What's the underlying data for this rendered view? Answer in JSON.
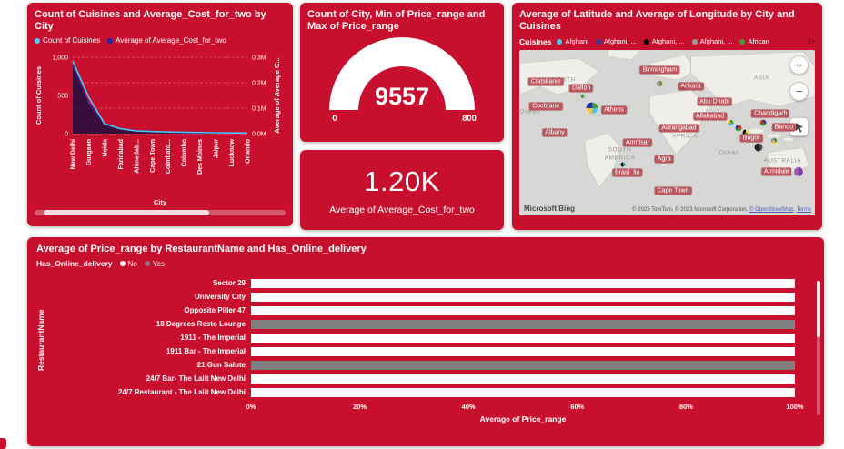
{
  "theme": {
    "card_red": "#C8102E",
    "series_no": "#FFFFFF",
    "series_yes": "#7F7F7F",
    "light_blue": "#53C6F5",
    "dark_blue": "#1B2AA6",
    "area_fill": "rgba(10,10,60,0.75)"
  },
  "chart_data": [
    {
      "id": "combo",
      "type": "line",
      "title": "Count of Cuisines and Average_Cost_for_two by City",
      "categories": [
        "New Delhi",
        "Gurgaon",
        "Noida",
        "Faridabad",
        "Ahmedab...",
        "Cape Town",
        "Coimbato...",
        "Colombo",
        "Des Moines",
        "Jaipur",
        "Lucknow",
        "Orlando"
      ],
      "series": [
        {
          "name": "Count of Cuisines",
          "axis": "left",
          "color": "#53C6F5",
          "values": [
            950,
            480,
            130,
            65,
            35,
            27,
            22,
            18,
            15,
            12,
            10,
            8
          ]
        },
        {
          "name": "Average of Average_Cost_for_two",
          "axis": "right",
          "color": "#1B2AA6",
          "values": [
            0.27,
            0.12,
            0.04,
            0.02,
            0.012,
            0.009,
            0.007,
            0.006,
            0.005,
            0.004,
            0.0035,
            0.003
          ]
        }
      ],
      "left_axis": {
        "title": "Count of Cuisines",
        "ticks": [
          "1,000",
          "500",
          "0"
        ],
        "max": 1000
      },
      "right_axis": {
        "title": "Average of Average C...",
        "ticks": [
          "0.3M",
          "0.2M",
          "0.1M",
          "0.0M"
        ],
        "max": 0.3
      },
      "xlabel": "City",
      "grid": true,
      "legend_position": "top"
    },
    {
      "id": "gauge",
      "type": "gauge",
      "title": "Count of City, Min of Price_range and Max of Price_range",
      "value": "9557",
      "min_label": "0",
      "max_label": "800"
    },
    {
      "id": "kpi-card",
      "type": "card",
      "value": "1.20K",
      "label": "Average of Average_Cost_for_two"
    },
    {
      "id": "map",
      "type": "map",
      "title": "Average of Latitude and Average of Longitude by City and Cuisines",
      "legend_title": "Cuisines",
      "legend_next": "▷",
      "legend": [
        {
          "label": "Afghani",
          "color": "#4FC8F0"
        },
        {
          "label": "Afghani, ...",
          "color": "#2C3C9E"
        },
        {
          "label": "Afghani, ...",
          "color": "#000000"
        },
        {
          "label": "Afghani, ...",
          "color": "#9B9B9B"
        },
        {
          "label": "African",
          "color": "#3F9C35"
        }
      ],
      "controls": {
        "zoom_in": "+",
        "zoom_out": "−"
      },
      "cities": [
        {
          "name": "Birmingham",
          "x": 47.5,
          "y": 12
        },
        {
          "name": "Clatskanie",
          "x": 9,
          "y": 19
        },
        {
          "name": "Dalton",
          "x": 21,
          "y": 23
        },
        {
          "name": "Ankara",
          "x": 58,
          "y": 22
        },
        {
          "name": "Abu Dhabi",
          "x": 66,
          "y": 31
        },
        {
          "name": "Cochrane",
          "x": 9,
          "y": 34
        },
        {
          "name": "Athens",
          "x": 32,
          "y": 36
        },
        {
          "name": "Allahabad",
          "x": 64.5,
          "y": 40
        },
        {
          "name": "Chandigarh",
          "x": 85,
          "y": 38
        },
        {
          "name": "Aurangabad",
          "x": 54,
          "y": 47
        },
        {
          "name": "Bandu",
          "x": 89.5,
          "y": 46.5
        },
        {
          "name": "Albany",
          "x": 12,
          "y": 50
        },
        {
          "name": "Amritsar",
          "x": 40,
          "y": 56
        },
        {
          "name": "Bogor",
          "x": 78.5,
          "y": 53
        },
        {
          "name": "Agra",
          "x": 49,
          "y": 66
        },
        {
          "name": "Brasí_lia",
          "x": 36.5,
          "y": 74
        },
        {
          "name": "Armidale",
          "x": 87,
          "y": 73.5
        },
        {
          "name": "Cape Town",
          "x": 52,
          "y": 85
        }
      ],
      "regions": [
        {
          "text": "NORTH",
          "x": 15,
          "y": 18
        },
        {
          "text": "ASIA",
          "x": 82,
          "y": 17
        },
        {
          "text": "AFRICA",
          "x": 56,
          "y": 52
        },
        {
          "text": "SOUTH",
          "x": 34,
          "y": 60
        },
        {
          "text": "AMERICA",
          "x": 34,
          "y": 65
        },
        {
          "text": "AUSTRALIA",
          "x": 89,
          "y": 67
        },
        {
          "text": "Ocean",
          "x": 3.5,
          "y": 37
        },
        {
          "text": "Ocean",
          "x": 71,
          "y": 62
        }
      ],
      "markers": [
        {
          "x": 24.5,
          "y": 35,
          "size": 15,
          "colors": [
            "#3F9C35",
            "#4FC8F0",
            "#F2C14E",
            "#1B2AA6"
          ]
        },
        {
          "x": 47.5,
          "y": 20,
          "size": 9,
          "colors": [
            "#8A8A3A",
            "#9B9B9B"
          ]
        },
        {
          "x": 55,
          "y": 21.5,
          "size": 9,
          "colors": [
            "#3F9C35",
            "#000000",
            "#F2C14E"
          ]
        },
        {
          "x": 21.5,
          "y": 28,
          "size": 7,
          "colors": [
            "#9B9B9B",
            "#3F9C35"
          ]
        },
        {
          "x": 71.5,
          "y": 44,
          "size": 9,
          "colors": [
            "#3F9C35",
            "#4FC8F0",
            "#F2C14E"
          ]
        },
        {
          "x": 74,
          "y": 47,
          "size": 9,
          "colors": [
            "#C0392B",
            "#3F9C35",
            "#2C3C9E"
          ]
        },
        {
          "x": 76.5,
          "y": 50,
          "size": 9,
          "colors": [
            "#F2C14E",
            "#3F9C35",
            "#000000"
          ]
        },
        {
          "x": 82.5,
          "y": 44,
          "size": 9,
          "colors": [
            "#2C3C9E",
            "#3F9C35",
            "#C0392B"
          ]
        },
        {
          "x": 81,
          "y": 58.5,
          "size": 11,
          "colors": [
            "#4A4A4A",
            "#222222"
          ]
        },
        {
          "x": 86,
          "y": 55,
          "size": 9,
          "colors": [
            "#3F9C35",
            "#F2C14E",
            "#9B9B9B"
          ]
        },
        {
          "x": 94.5,
          "y": 73.5,
          "size": 12,
          "colors": [
            "#7B3FA0",
            "#9B59B6"
          ]
        },
        {
          "x": 35,
          "y": 69,
          "size": 7,
          "colors": [
            "#16A085",
            "#000000"
          ]
        }
      ],
      "attribution": {
        "brand": "Microsoft Bing",
        "text": "© 2023 TomTom, © 2023 Microsoft Corporation, ",
        "link_osm": "© OpenStreetMap",
        "separator": ", ",
        "link_terms": "Terms"
      }
    },
    {
      "id": "bars",
      "type": "bar",
      "title": "Average of Price_range by RestaurantName and Has_Online_delivery",
      "legend_title": "Has_Online_delivery",
      "legend": [
        {
          "label": "No",
          "color": "#FFFFFF"
        },
        {
          "label": "Yes",
          "color": "#7F7F7F"
        }
      ],
      "ylabel": "RestaurantName",
      "xlabel": "Average of Price_range",
      "x_ticks": [
        "0%",
        "20%",
        "40%",
        "60%",
        "80%",
        "100%"
      ],
      "rows": [
        {
          "name": "Sector 29",
          "series": "No",
          "value_pct": 100
        },
        {
          "name": "University City",
          "series": "No",
          "value_pct": 100
        },
        {
          "name": "Opposite Piller 47",
          "series": "No",
          "value_pct": 100
        },
        {
          "name": "18 Degrees Resto Lounge",
          "series": "Yes",
          "value_pct": 100
        },
        {
          "name": "1911 - The Imperial",
          "series": "No",
          "value_pct": 100
        },
        {
          "name": "1911 Bar - The Imperial",
          "series": "No",
          "value_pct": 100
        },
        {
          "name": "21 Gun Salute",
          "series": "Yes",
          "value_pct": 100
        },
        {
          "name": "24/7 Bar- The Lalit New Delhi",
          "series": "No",
          "value_pct": 100
        },
        {
          "name": "24/7 Restaurant - The Lalit New Delhi",
          "series": "No",
          "value_pct": 100
        }
      ]
    }
  ]
}
